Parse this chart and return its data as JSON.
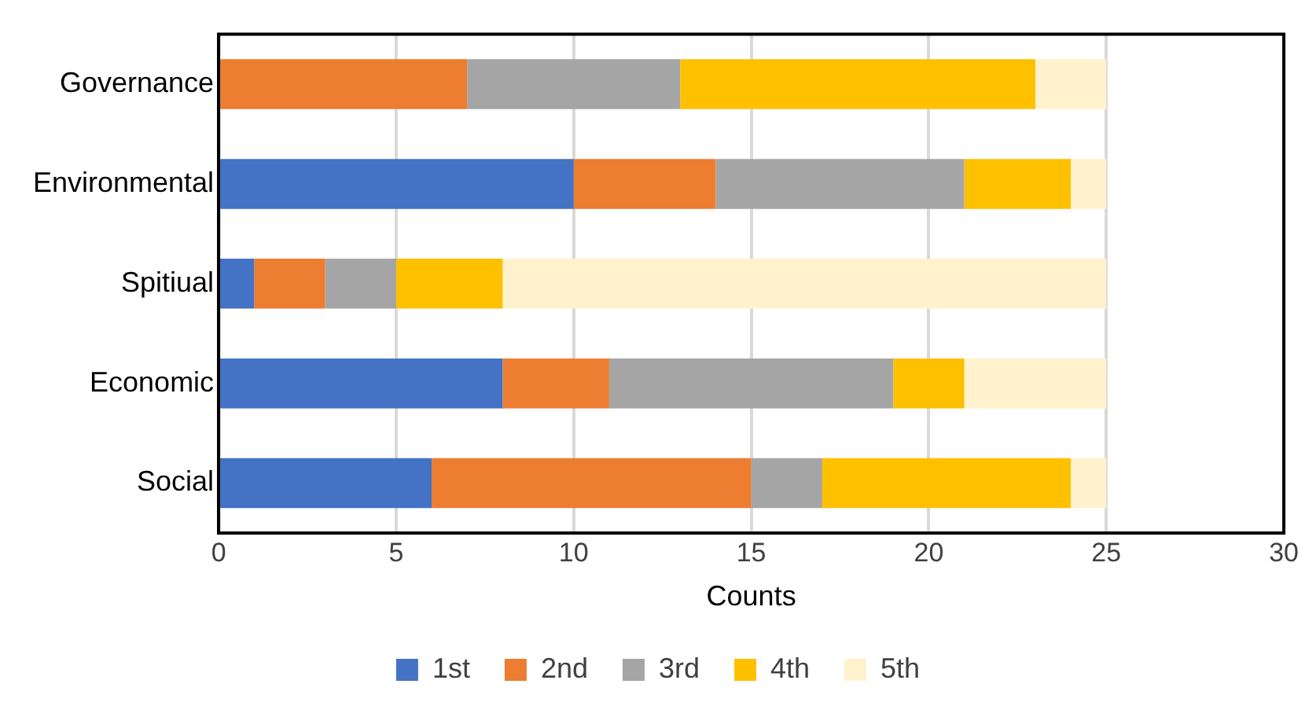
{
  "chart_data": {
    "type": "bar",
    "orientation": "horizontal",
    "stacked": true,
    "xlabel": "Counts",
    "categories": [
      "Governance",
      "Environmental",
      "Spitiual",
      "Economic",
      "Social"
    ],
    "series": [
      {
        "name": "1st",
        "color": "#4472c4",
        "values": [
          0,
          10,
          1,
          8,
          6
        ]
      },
      {
        "name": "2nd",
        "color": "#ed7d31",
        "values": [
          7,
          4,
          2,
          3,
          9
        ]
      },
      {
        "name": "3rd",
        "color": "#a5a5a5",
        "values": [
          6,
          7,
          2,
          8,
          2
        ]
      },
      {
        "name": "4th",
        "color": "#ffc000",
        "values": [
          10,
          3,
          3,
          2,
          7
        ]
      },
      {
        "name": "5th",
        "color": "#fff2cc",
        "values": [
          2,
          1,
          17,
          4,
          1
        ]
      }
    ],
    "xlim": [
      0,
      30
    ],
    "xticks": [
      0,
      5,
      10,
      15,
      20,
      25,
      30
    ],
    "grid": "x",
    "legend": "bottom"
  }
}
